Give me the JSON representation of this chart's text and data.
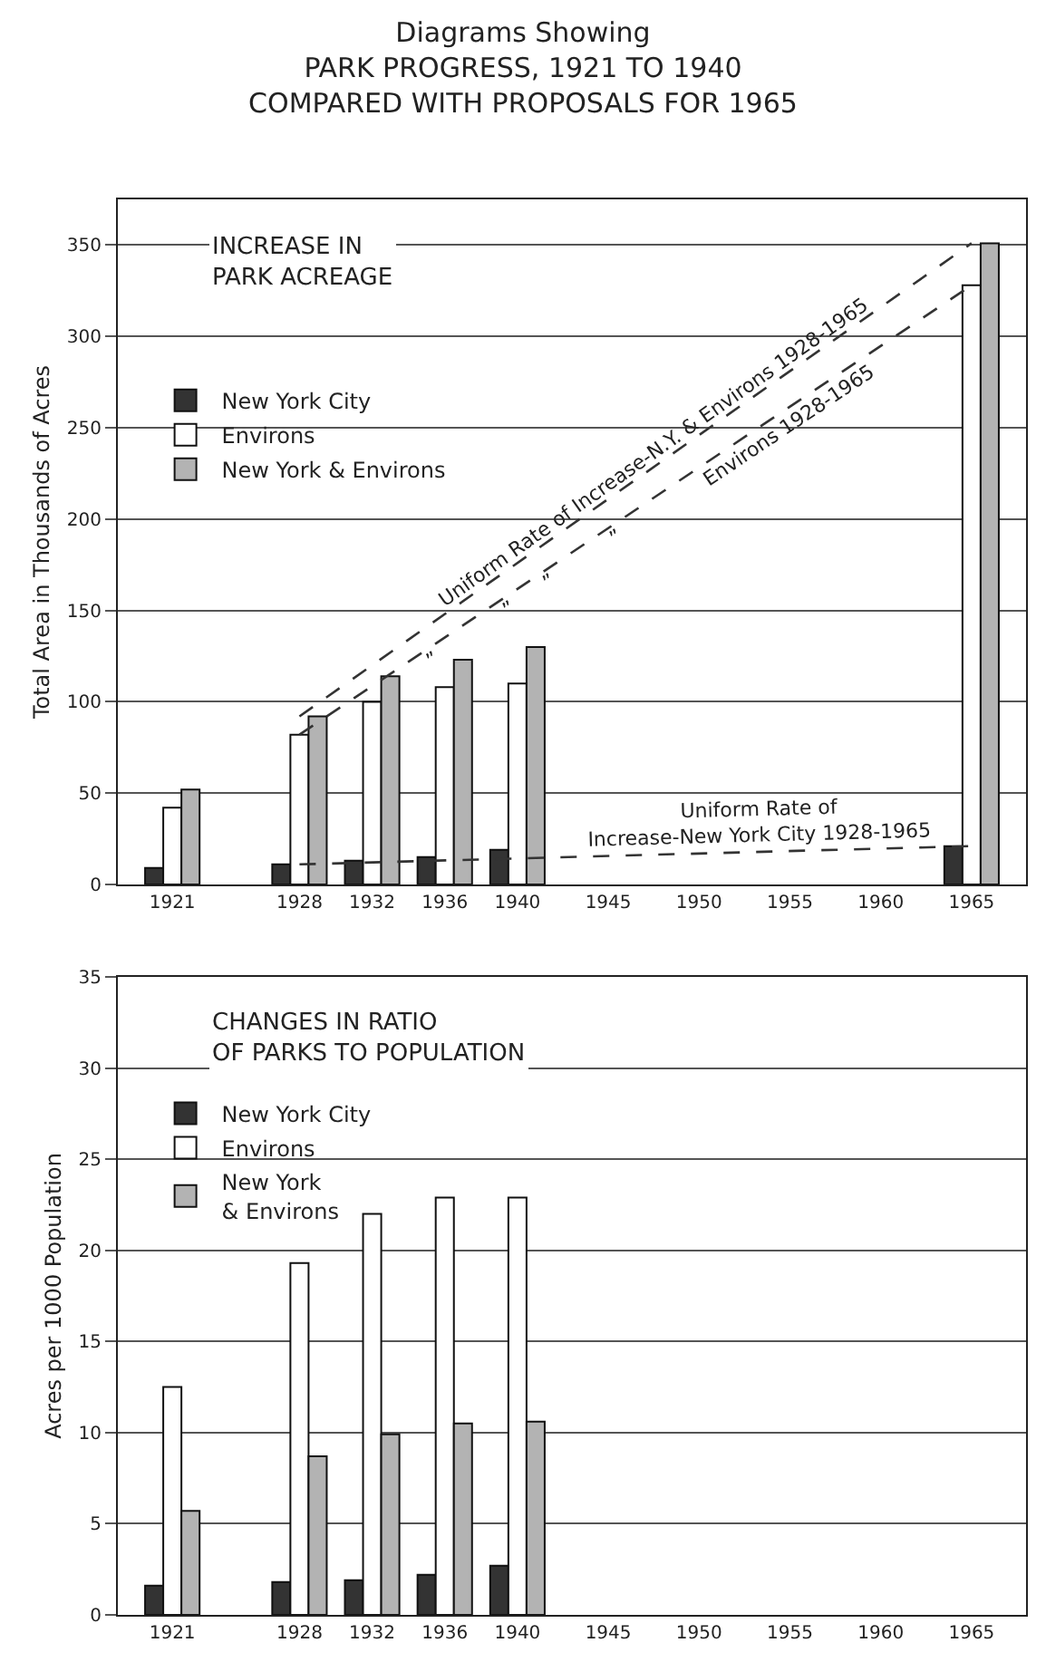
{
  "chart_data": [
    {
      "type": "bar",
      "title": "Diagrams Showing\nPARK PROGRESS, 1921 TO 1940\nCOMPARED WITH PROPOSALS FOR 1965",
      "subtitle": "INCREASE IN\nPARK ACREAGE",
      "ylabel": "Total Area in Thousands of Acres",
      "x": [
        1921,
        1928,
        1932,
        1936,
        1940,
        1965
      ],
      "series": [
        {
          "name": "New York City",
          "color": "#333333",
          "values": [
            9,
            11,
            13,
            15,
            19,
            21
          ]
        },
        {
          "name": "Environs",
          "color": "#ffffff",
          "values": [
            42,
            82,
            100,
            108,
            110,
            328
          ]
        },
        {
          "name": "New York & Environs",
          "color": "#b3b3b3",
          "values": [
            52,
            92,
            114,
            123,
            130,
            351
          ]
        },
        {
          "type": "line",
          "color": "#333333",
          "values": [
            null,
            92,
            null,
            null,
            null,
            351
          ]
        },
        {
          "type": "line",
          "color": "#333333",
          "values": [
            null,
            82,
            null,
            null,
            null,
            328
          ]
        },
        {
          "type": "line",
          "color": "#333333",
          "values": [
            null,
            11,
            null,
            null,
            null,
            21
          ]
        }
      ],
      "line_style": "dashed",
      "xlim": [
        1918,
        1968
      ],
      "xticks": [
        1921,
        1928,
        1932,
        1936,
        1940,
        1945,
        1950,
        1955,
        1960,
        1965
      ],
      "ylim": [
        0,
        375
      ],
      "yticks": [
        0,
        50,
        100,
        150,
        200,
        250,
        300,
        350
      ],
      "grid": "y",
      "legend": "top left",
      "annotations": [
        {
          "text": "Uniform Rate of Increase-N.Y. & Environs 1928-1965",
          "x": 1947.5,
          "y": 228
        },
        {
          "text": "Environs 1928-1965",
          "x": 1955,
          "y": 261
        },
        {
          "text": "Uniform Rate of\nIncrease-New York City 1928-1965",
          "x": 1953.3,
          "y": 18
        },
        {
          "text": "”",
          "x": 1935.4,
          "y": 131
        },
        {
          "text": "”",
          "x": 1939.6,
          "y": 159
        },
        {
          "text": "”",
          "x": 1941.8,
          "y": 174
        },
        {
          "text": "”",
          "x": 1945.4,
          "y": 198
        }
      ]
    },
    {
      "type": "bar",
      "title": "CHANGES IN RATIO\nOF PARKS TO POPULATION",
      "ylabel": "Acres per 1000 Population",
      "x": [
        1921,
        1928,
        1932,
        1936,
        1940
      ],
      "series": [
        {
          "name": "New York City",
          "color": "#333333",
          "values": [
            1.6,
            1.8,
            1.9,
            2.2,
            2.7
          ]
        },
        {
          "name": "Environs",
          "color": "#ffffff",
          "values": [
            12.5,
            19.3,
            22.0,
            22.9,
            22.9
          ]
        },
        {
          "name": "New York\n& Environs",
          "color": "#b3b3b3",
          "values": [
            5.7,
            8.7,
            9.9,
            10.5,
            10.6
          ]
        }
      ],
      "xlim": [
        1918,
        1968
      ],
      "xticks": [
        1921,
        1928,
        1932,
        1936,
        1940,
        1945,
        1950,
        1955,
        1960,
        1965
      ],
      "ylim": [
        0,
        35
      ],
      "yticks": [
        0,
        5,
        10,
        15,
        20,
        25,
        30,
        35
      ],
      "grid": "y",
      "legend": "top left"
    }
  ]
}
